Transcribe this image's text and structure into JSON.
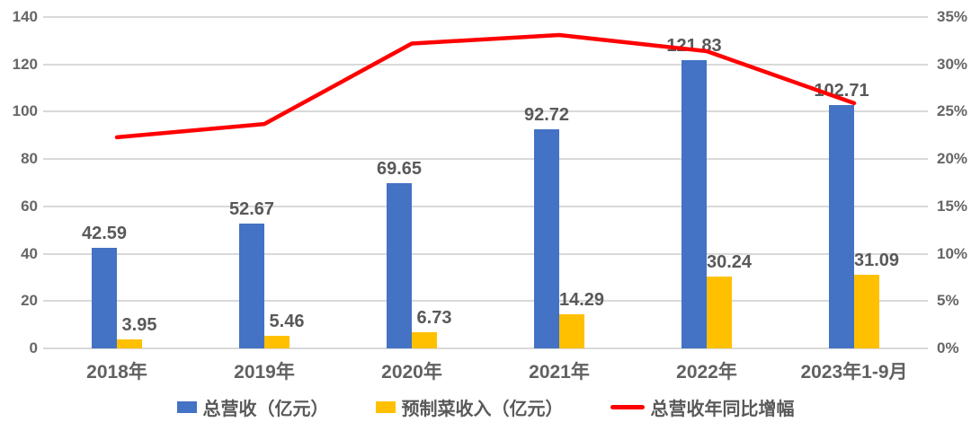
{
  "chart_data": {
    "type": "bar",
    "subtype": "grouped-bars-with-line-overlay",
    "title": "",
    "categories": [
      "2018年",
      "2019年",
      "2020年",
      "2021年",
      "2022年",
      "2023年1-9月"
    ],
    "series": [
      {
        "name": "总营收（亿元）",
        "type": "bar",
        "axis": "left",
        "color": "#4472C4",
        "values": [
          42.59,
          52.67,
          69.65,
          92.72,
          121.83,
          102.71
        ],
        "data_labels": [
          "42.59",
          "52.67",
          "69.65",
          "92.72",
          "121.83",
          "102.71"
        ]
      },
      {
        "name": "预制菜收入（亿元）",
        "type": "bar",
        "axis": "left",
        "color": "#FFC000",
        "values": [
          3.95,
          5.46,
          6.73,
          14.29,
          30.24,
          31.09
        ],
        "data_labels": [
          "3.95",
          "5.46",
          "6.73",
          "14.29",
          "30.24",
          "31.09"
        ]
      },
      {
        "name": "总营收年同比增幅",
        "type": "line",
        "axis": "right",
        "color": "#FF0000",
        "values_percent": [
          22.3,
          23.7,
          32.2,
          33.1,
          31.4,
          25.9
        ]
      }
    ],
    "left_axis": {
      "min": 0,
      "max": 140,
      "tick_step": 20,
      "ticks": [
        "140",
        "120",
        "100",
        "80",
        "60",
        "40",
        "20",
        "0"
      ]
    },
    "right_axis": {
      "min_percent": 0,
      "max_percent": 35,
      "tick_step_percent": 5,
      "ticks": [
        "35%",
        "30%",
        "25%",
        "20%",
        "15%",
        "10%",
        "5%",
        "0%"
      ]
    },
    "grid": true,
    "gridline_color": "#D9D9D9",
    "legend_position": "bottom",
    "background_color": "#FFFFFF",
    "label_color": "#595959"
  },
  "legend": {
    "items": [
      {
        "label": "总营收（亿元）",
        "swatch": "bar",
        "color": "#4472C4"
      },
      {
        "label": "预制菜收入（亿元）",
        "swatch": "bar",
        "color": "#FFC000"
      },
      {
        "label": "总营收年同比增幅",
        "swatch": "line",
        "color": "#FF0000"
      }
    ]
  }
}
